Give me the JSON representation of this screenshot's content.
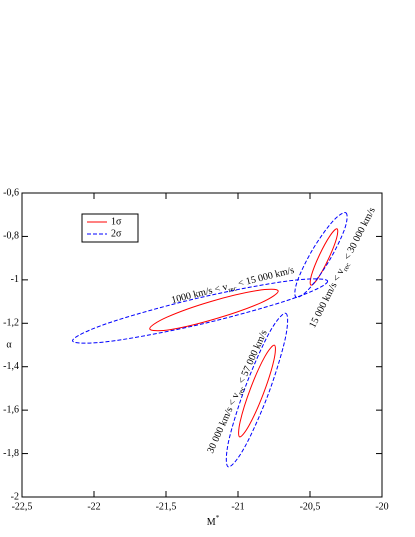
{
  "chart_data": {
    "type": "contour",
    "xlabel": [
      "M",
      "*"
    ],
    "ylabel": "α",
    "xlim": [
      -22.5,
      -20
    ],
    "ylim": [
      -2,
      -0.6
    ],
    "xticks": [
      {
        "value": -22.5,
        "label": "-22,5"
      },
      -22,
      {
        "value": -21.5,
        "label": "-21,5"
      },
      -21,
      {
        "value": -20.5,
        "label": "-20,5"
      },
      -20
    ],
    "yticks": [
      {
        "value": -2,
        "label": "-2"
      },
      {
        "value": -1.8,
        "label": "-1,8"
      },
      {
        "value": -1.6,
        "label": "-1,6"
      },
      {
        "value": -1.4,
        "label": "-1,4"
      },
      {
        "value": -1.2,
        "label": "-1,2"
      },
      -1,
      {
        "value": -0.8,
        "label": "-0,8"
      },
      {
        "value": -0.6,
        "label": "-0,6"
      }
    ],
    "legend": "upper left",
    "series": [
      {
        "name": "1σ",
        "color": "#ff0000",
        "dash": "solid",
        "contours": [
          {
            "x": [
              -20.721,
              -20.839,
              -21.149,
              -21.469,
              -21.613,
              -21.494,
              -21.185,
              -20.864
            ],
            "y": [
              -1.051,
              -1.105,
              -1.178,
              -1.229,
              -1.226,
              -1.172,
              -1.099,
              -1.049
            ]
          },
          {
            "x": [
              -20.312,
              -20.316,
              -20.372,
              -20.445,
              -20.494,
              -20.49,
              -20.434,
              -20.36
            ],
            "y": [
              -0.765,
              -0.81,
              -0.904,
              -0.993,
              -1.024,
              -0.979,
              -0.885,
              -0.796
            ]
          },
          {
            "x": [
              -20.747,
              -20.751,
              -20.823,
              -20.922,
              -20.989,
              -20.985,
              -20.913,
              -20.815
            ],
            "y": [
              -1.301,
              -1.371,
              -1.523,
              -1.669,
              -1.723,
              -1.653,
              -1.5,
              -1.355
            ]
          }
        ]
      },
      {
        "name": "2σ",
        "color": "#0000ff",
        "dash": "dashed",
        "contours": [
          {
            "x": [
              -20.378,
              -20.623,
              -21.243,
              -21.876,
              -22.149,
              -21.905,
              -21.285,
              -20.652
            ],
            "y": [
              -1.006,
              -1.087,
              -1.202,
              -1.282,
              -1.281,
              -1.2,
              -1.085,
              -1.005
            ]
          },
          {
            "x": [
              -20.251,
              -20.259,
              -20.364,
              -20.503,
              -20.597,
              -20.588,
              -20.483,
              -20.344
            ],
            "y": [
              -0.691,
              -0.765,
              -0.909,
              -1.039,
              -1.08,
              -1.006,
              -0.862,
              -0.732
            ]
          },
          {
            "x": [
              -20.668,
              -20.672,
              -20.79,
              -20.954,
              -21.068,
              -21.065,
              -20.946,
              -20.782
            ],
            "y": [
              -1.154,
              -1.271,
              -1.527,
              -1.771,
              -1.861,
              -1.743,
              -1.488,
              -1.243
            ]
          }
        ]
      }
    ],
    "annotations": [
      [
        "1000 km/s < v",
        "rec",
        " < 15 000 km/s"
      ],
      [
        "15 000 km/s < v",
        "rec",
        " < 30 000 km/s"
      ],
      [
        "30 000 km/s < v",
        "rec",
        " < 57 000 km/s"
      ]
    ]
  }
}
